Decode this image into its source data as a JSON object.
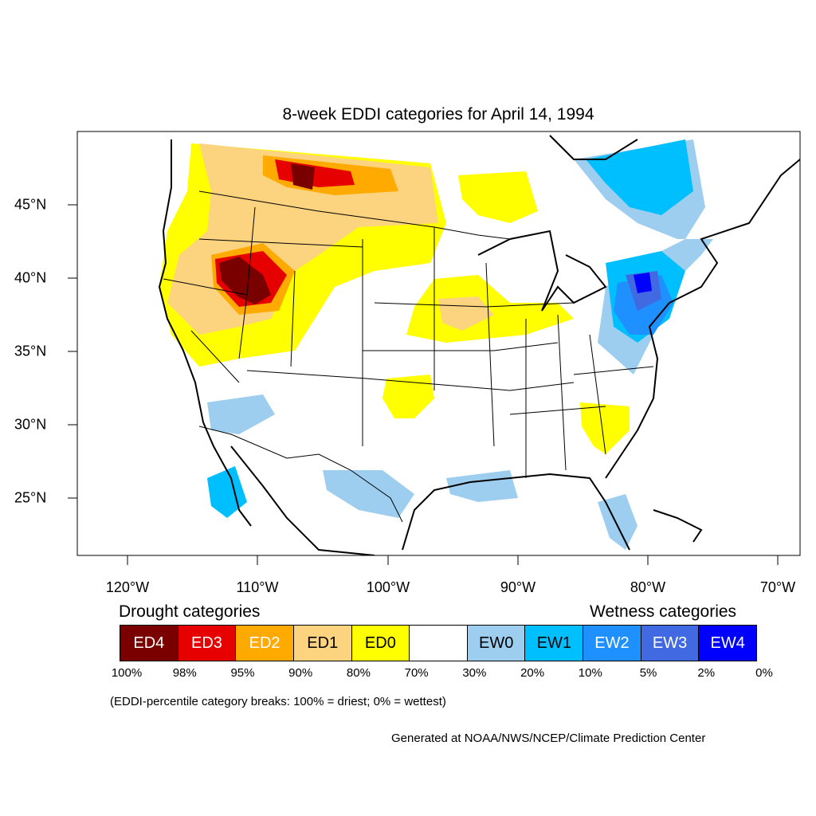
{
  "map": {
    "title": "8-week EDDI categories for April 14, 1994",
    "lon_ticks": [
      {
        "value": -120,
        "label": "120°W"
      },
      {
        "value": -110,
        "label": "110°W"
      },
      {
        "value": -100,
        "label": "100°W"
      },
      {
        "value": -90,
        "label": "90°W"
      },
      {
        "value": -80,
        "label": "80°W"
      },
      {
        "value": -70,
        "label": "70°W"
      }
    ],
    "lat_ticks": [
      {
        "value": 45,
        "label": "45°N"
      },
      {
        "value": 40,
        "label": "40°N"
      },
      {
        "value": 35,
        "label": "35°N"
      },
      {
        "value": 30,
        "label": "30°N"
      },
      {
        "value": 25,
        "label": "25°N"
      }
    ],
    "extent": {
      "lon_min": -124,
      "lon_max": -68.5,
      "lat_min": 21,
      "lat_max": 50
    }
  },
  "legend": {
    "drought_heading": "Drought categories",
    "wetness_heading": "Wetness categories",
    "categories": [
      {
        "label": "ED4",
        "color": "#7a0000",
        "text_color": "#ffffff"
      },
      {
        "label": "ED3",
        "color": "#e60000",
        "text_color": "#ffffff"
      },
      {
        "label": "ED2",
        "color": "#ffaa00",
        "text_color": "#ffffff"
      },
      {
        "label": "ED1",
        "color": "#fcd37f",
        "text_color": "#000000"
      },
      {
        "label": "ED0",
        "color": "#ffff00",
        "text_color": "#000000"
      },
      {
        "label": "",
        "color": "#ffffff",
        "text_color": "#000000"
      },
      {
        "label": "EW0",
        "color": "#9dcef0",
        "text_color": "#000000"
      },
      {
        "label": "EW1",
        "color": "#00bfff",
        "text_color": "#000000"
      },
      {
        "label": "EW2",
        "color": "#1e90ff",
        "text_color": "#ffffff"
      },
      {
        "label": "EW3",
        "color": "#4169e1",
        "text_color": "#ffffff"
      },
      {
        "label": "EW4",
        "color": "#0000ff",
        "text_color": "#ffffff"
      }
    ],
    "breaks": [
      "100%",
      "98%",
      "95%",
      "90%",
      "80%",
      "70%",
      "30%",
      "20%",
      "10%",
      "5%",
      "2%",
      "0%"
    ]
  },
  "note": "(EDDI-percentile category breaks: 100% = driest; 0% = wettest)",
  "credit": "Generated at NOAA/NWS/NCEP/Climate Prediction Center"
}
